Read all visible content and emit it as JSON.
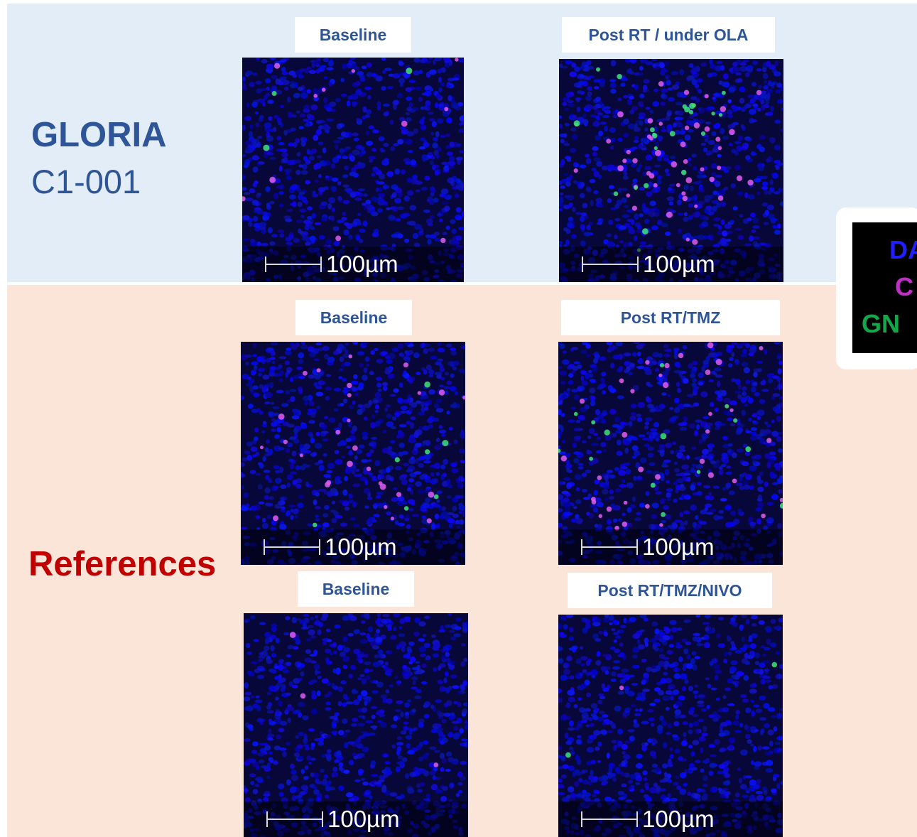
{
  "sections": {
    "gloria": {
      "title": "GLORIA",
      "subtitle": "C1-001"
    },
    "references": {
      "title": "References"
    }
  },
  "panels": [
    {
      "id": "p1",
      "label": "Baseline",
      "scale": "100µm"
    },
    {
      "id": "p2",
      "label": "Post RT / under OLA",
      "scale": "100µm"
    },
    {
      "id": "p3",
      "label": "Baseline",
      "scale": "100µm"
    },
    {
      "id": "p4",
      "label": "Post RT/TMZ",
      "scale": "100µm"
    },
    {
      "id": "p5",
      "label": "Baseline",
      "scale": "100µm"
    },
    {
      "id": "p6",
      "label": "Post RT/TMZ/NIVO",
      "scale": "100µm"
    }
  ],
  "legend": {
    "line1": "DA",
    "line2": "C",
    "line3": "GN"
  },
  "colors": {
    "gloria_bg": "#e2edf7",
    "references_bg": "#fbe4d8",
    "title_blue": "#2e5597",
    "title_red": "#c00000"
  }
}
